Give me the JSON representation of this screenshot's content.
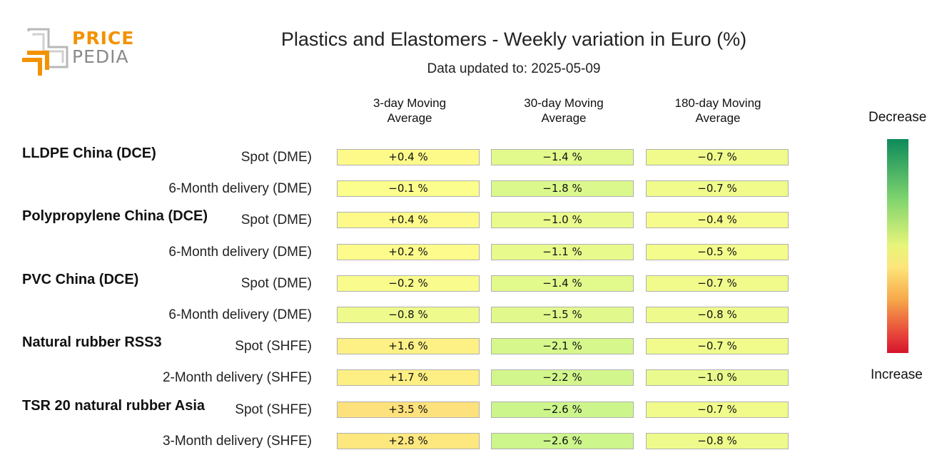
{
  "logo": {
    "top_text": "PRICE",
    "bottom_text": "PEDIA"
  },
  "chart_data": {
    "type": "table",
    "title": "Plastics and Elastomers - Weekly variation in Euro (%)",
    "subtitle": "Data updated to: 2025-05-09",
    "columns": [
      [
        "3-day Moving",
        "Average"
      ],
      [
        "30-day Moving",
        "Average"
      ],
      [
        "180-day Moving",
        "Average"
      ]
    ],
    "groups": [
      {
        "name": "LLDPE China (DCE)",
        "rows": [
          {
            "label": "Spot (DME)",
            "values": [
              "+0.4 %",
              "−1.4 %",
              "−0.7 %"
            ]
          },
          {
            "label": "6-Month delivery (DME)",
            "values": [
              "−0.1 %",
              "−1.8 %",
              "−0.7 %"
            ]
          }
        ]
      },
      {
        "name": "Polypropylene China (DCE)",
        "rows": [
          {
            "label": "Spot (DME)",
            "values": [
              "+0.4 %",
              "−1.0 %",
              "−0.4 %"
            ]
          },
          {
            "label": "6-Month delivery (DME)",
            "values": [
              "+0.2 %",
              "−1.1 %",
              "−0.5 %"
            ]
          }
        ]
      },
      {
        "name": "PVC China (DCE)",
        "rows": [
          {
            "label": "Spot (DME)",
            "values": [
              "−0.2 %",
              "−1.4 %",
              "−0.7 %"
            ]
          },
          {
            "label": "6-Month delivery (DME)",
            "values": [
              "−0.8 %",
              "−1.5 %",
              "−0.8 %"
            ]
          }
        ]
      },
      {
        "name": "Natural rubber RSS3",
        "rows": [
          {
            "label": "Spot (SHFE)",
            "values": [
              "+1.6 %",
              "−2.1 %",
              "−0.7 %"
            ]
          },
          {
            "label": "2-Month delivery (SHFE)",
            "values": [
              "+1.7 %",
              "−2.2 %",
              "−1.0 %"
            ]
          }
        ]
      },
      {
        "name": "TSR 20 natural rubber Asia",
        "rows": [
          {
            "label": "Spot (SHFE)",
            "values": [
              "+3.5 %",
              "−2.6 %",
              "−0.7 %"
            ]
          },
          {
            "label": "3-Month delivery (SHFE)",
            "values": [
              "+2.8 %",
              "−2.6 %",
              "−0.8 %"
            ]
          }
        ]
      }
    ],
    "legend": {
      "top_label": "Decrease",
      "bottom_label": "Increase"
    },
    "colors": {
      "strong_decrease": "#0c8a5a",
      "mild_decrease": "#c4f48c",
      "neutral": "#fdfd8c",
      "mild_increase": "#fde27e",
      "strong_increase": "#d4142b"
    }
  }
}
